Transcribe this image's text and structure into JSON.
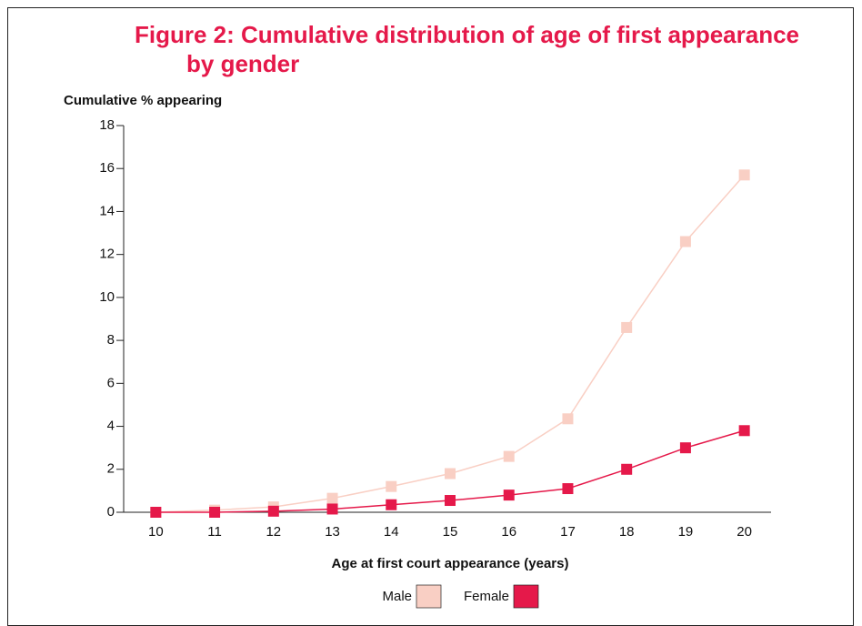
{
  "chart_data": {
    "type": "line",
    "title": "Figure 2: Cumulative distribution of age of first appearance by gender",
    "y_label": "Cumulative % appearing",
    "x_label": "Age at first court appearance (years)",
    "categories": [
      "10",
      "11",
      "12",
      "13",
      "14",
      "15",
      "16",
      "17",
      "18",
      "19",
      "20"
    ],
    "series": [
      {
        "name": "Male",
        "color": "#f9cfc4",
        "values": [
          0,
          0.1,
          0.25,
          0.65,
          1.2,
          1.8,
          2.6,
          4.35,
          8.6,
          12.6,
          15.7
        ]
      },
      {
        "name": "Female",
        "color": "#e5194a",
        "values": [
          0,
          0,
          0.05,
          0.15,
          0.35,
          0.55,
          0.8,
          1.1,
          2.0,
          3.0,
          3.8
        ]
      }
    ],
    "ylim": [
      0,
      18
    ],
    "yticks": [
      0,
      2,
      4,
      6,
      8,
      10,
      12,
      14,
      16,
      18
    ],
    "grid": false
  }
}
